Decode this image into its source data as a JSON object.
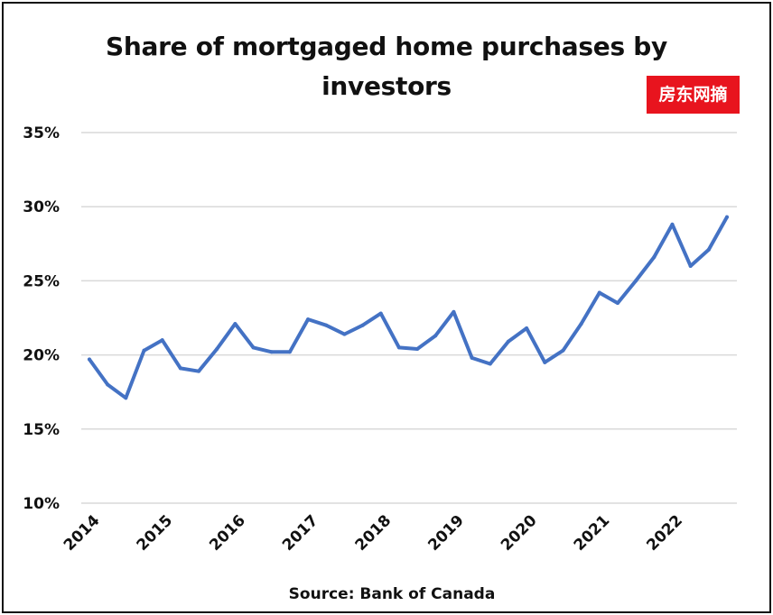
{
  "chart_data": {
    "type": "line",
    "title": [
      "Share of mortgaged home purchases by",
      "investors"
    ],
    "source": "Source:  Bank of Canada",
    "badge": "房东网摘",
    "xlabel": "",
    "ylabel": "",
    "ylim": [
      10,
      35
    ],
    "yticks": [
      10,
      15,
      20,
      25,
      30,
      35
    ],
    "ytick_labels": [
      "10%",
      "15%",
      "20%",
      "25%",
      "30%",
      "35%"
    ],
    "xtick_labels": [
      "2014",
      "2015",
      "2016",
      "2017",
      "2018",
      "2019",
      "2020",
      "2021",
      "2022"
    ],
    "grid": true,
    "legend": "none",
    "series": [
      {
        "color": "#4472c4",
        "x": [
          "2014 Q1",
          "2014 Q2",
          "2014 Q3",
          "2014 Q4",
          "2015 Q1",
          "2015 Q2",
          "2015 Q3",
          "2015 Q4",
          "2016 Q1",
          "2016 Q2",
          "2016 Q3",
          "2016 Q4",
          "2017 Q1",
          "2017 Q2",
          "2017 Q3",
          "2017 Q4",
          "2018 Q1",
          "2018 Q2",
          "2018 Q3",
          "2018 Q4",
          "2019 Q1",
          "2019 Q2",
          "2019 Q3",
          "2019 Q4",
          "2020 Q1",
          "2020 Q2",
          "2020 Q3",
          "2020 Q4",
          "2021 Q1",
          "2021 Q2",
          "2021 Q3",
          "2021 Q4",
          "2022 Q1",
          "2022 Q2",
          "2022 Q3",
          "2022 Q4"
        ],
        "values": [
          19.7,
          18.0,
          17.1,
          20.3,
          21.0,
          19.1,
          18.9,
          20.4,
          22.1,
          20.5,
          20.2,
          20.2,
          22.4,
          22.0,
          21.4,
          22.0,
          22.8,
          20.5,
          20.4,
          21.3,
          22.9,
          19.8,
          19.4,
          20.9,
          21.8,
          19.5,
          20.3,
          22.1,
          24.2,
          23.5,
          25.0,
          26.6,
          28.8,
          26.0,
          27.1,
          29.3
        ]
      }
    ]
  }
}
